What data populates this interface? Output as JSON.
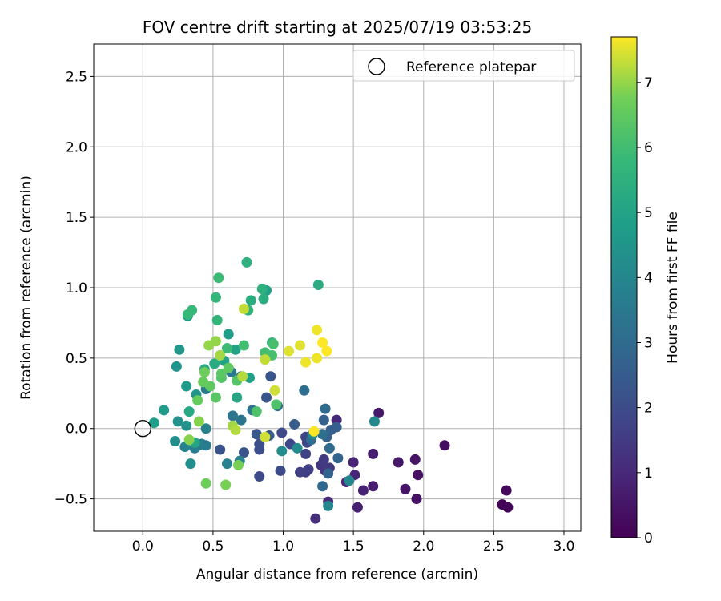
{
  "chart_data": {
    "type": "scatter",
    "title": "FOV centre drift starting at 2025/07/19 03:53:25",
    "xlabel": "Angular distance from reference (arcmin)",
    "ylabel": "Rotation from reference (arcmin)",
    "xlim": [
      -0.35,
      3.12
    ],
    "ylim": [
      -0.73,
      2.73
    ],
    "xticks": [
      0.0,
      0.5,
      1.0,
      1.5,
      2.0,
      2.5,
      3.0
    ],
    "xtick_labels": [
      "0.0",
      "0.5",
      "1.0",
      "1.5",
      "2.0",
      "2.5",
      "3.0"
    ],
    "yticks": [
      -0.5,
      0.0,
      0.5,
      1.0,
      1.5,
      2.0,
      2.5
    ],
    "ytick_labels": [
      "−0.5",
      "0.0",
      "0.5",
      "1.0",
      "1.5",
      "2.0",
      "2.5"
    ],
    "grid": true,
    "legend": {
      "position": "top-right",
      "entries": [
        "Reference platepar"
      ]
    },
    "reference_point": {
      "x": 0.0,
      "y": 0.0
    },
    "colorbar": {
      "label": "Hours from first FF file",
      "min": 0,
      "max": 7.7,
      "ticks": [
        0,
        1,
        2,
        3,
        4,
        5,
        6,
        7
      ],
      "tick_labels": [
        "0",
        "1",
        "2",
        "3",
        "4",
        "5",
        "6",
        "7"
      ],
      "colormap": "viridis"
    },
    "points": [
      {
        "x": 2.6,
        "y": -0.56,
        "h": 0.1
      },
      {
        "x": 2.56,
        "y": -0.54,
        "h": 0.1
      },
      {
        "x": 2.59,
        "y": -0.44,
        "h": 0.2
      },
      {
        "x": 2.15,
        "y": -0.12,
        "h": 0.3
      },
      {
        "x": 1.95,
        "y": -0.5,
        "h": 0.4
      },
      {
        "x": 1.96,
        "y": -0.33,
        "h": 0.4
      },
      {
        "x": 1.94,
        "y": -0.22,
        "h": 0.5
      },
      {
        "x": 1.87,
        "y": -0.43,
        "h": 0.5
      },
      {
        "x": 1.82,
        "y": -0.24,
        "h": 0.6
      },
      {
        "x": 1.68,
        "y": 0.11,
        "h": 0.6
      },
      {
        "x": 1.64,
        "y": -0.18,
        "h": 0.7
      },
      {
        "x": 1.64,
        "y": -0.41,
        "h": 0.7
      },
      {
        "x": 1.57,
        "y": -0.44,
        "h": 0.8
      },
      {
        "x": 1.53,
        "y": -0.56,
        "h": 0.8
      },
      {
        "x": 1.51,
        "y": -0.33,
        "h": 0.9
      },
      {
        "x": 1.5,
        "y": -0.24,
        "h": 0.9
      },
      {
        "x": 1.45,
        "y": -0.38,
        "h": 1.0
      },
      {
        "x": 1.38,
        "y": 0.06,
        "h": 1.0
      },
      {
        "x": 1.32,
        "y": -0.52,
        "h": 1.1
      },
      {
        "x": 1.23,
        "y": -0.64,
        "h": 1.2
      },
      {
        "x": 1.3,
        "y": -0.3,
        "h": 1.3
      },
      {
        "x": 1.27,
        "y": -0.26,
        "h": 1.4
      },
      {
        "x": 1.29,
        "y": -0.22,
        "h": 1.5
      },
      {
        "x": 1.33,
        "y": -0.28,
        "h": 1.5
      },
      {
        "x": 1.16,
        "y": -0.31,
        "h": 1.6
      },
      {
        "x": 1.18,
        "y": -0.29,
        "h": 1.6
      },
      {
        "x": 1.12,
        "y": -0.31,
        "h": 1.7
      },
      {
        "x": 1.16,
        "y": -0.18,
        "h": 1.7
      },
      {
        "x": 1.16,
        "y": -0.06,
        "h": 1.8
      },
      {
        "x": 1.17,
        "y": -0.1,
        "h": 1.8
      },
      {
        "x": 1.05,
        "y": -0.11,
        "h": 1.9
      },
      {
        "x": 0.99,
        "y": -0.03,
        "h": 1.9
      },
      {
        "x": 0.98,
        "y": -0.3,
        "h": 2.0
      },
      {
        "x": 0.83,
        "y": -0.34,
        "h": 2.0
      },
      {
        "x": 0.83,
        "y": -0.15,
        "h": 2.1
      },
      {
        "x": 0.83,
        "y": -0.11,
        "h": 2.1
      },
      {
        "x": 0.72,
        "y": -0.17,
        "h": 2.2
      },
      {
        "x": 0.55,
        "y": -0.15,
        "h": 2.2
      },
      {
        "x": 0.88,
        "y": 0.22,
        "h": 2.3
      },
      {
        "x": 0.91,
        "y": 0.37,
        "h": 2.3
      },
      {
        "x": 0.81,
        "y": -0.04,
        "h": 2.4
      },
      {
        "x": 0.9,
        "y": -0.05,
        "h": 2.4
      },
      {
        "x": 1.08,
        "y": 0.03,
        "h": 2.5
      },
      {
        "x": 1.38,
        "y": 0.01,
        "h": 2.6
      },
      {
        "x": 1.34,
        "y": -0.01,
        "h": 2.6
      },
      {
        "x": 1.29,
        "y": 0.06,
        "h": 2.7
      },
      {
        "x": 1.31,
        "y": -0.06,
        "h": 2.7
      },
      {
        "x": 1.39,
        "y": -0.21,
        "h": 2.8
      },
      {
        "x": 1.32,
        "y": -0.32,
        "h": 2.8
      },
      {
        "x": 1.28,
        "y": -0.41,
        "h": 2.9
      },
      {
        "x": 1.33,
        "y": -0.14,
        "h": 3.0
      },
      {
        "x": 1.3,
        "y": 0.14,
        "h": 3.0
      },
      {
        "x": 1.15,
        "y": 0.27,
        "h": 3.1
      },
      {
        "x": 1.2,
        "y": -0.08,
        "h": 3.1
      },
      {
        "x": 1.28,
        "y": -0.04,
        "h": 3.2
      },
      {
        "x": 0.96,
        "y": 0.16,
        "h": 3.2
      },
      {
        "x": 0.78,
        "y": 0.13,
        "h": 3.3
      },
      {
        "x": 0.7,
        "y": 0.06,
        "h": 3.3
      },
      {
        "x": 0.64,
        "y": 0.09,
        "h": 3.4
      },
      {
        "x": 0.7,
        "y": 0.37,
        "h": 3.4
      },
      {
        "x": 0.63,
        "y": 0.4,
        "h": 3.5
      },
      {
        "x": 0.45,
        "y": 0.28,
        "h": 3.5
      },
      {
        "x": 0.42,
        "y": -0.11,
        "h": 3.6
      },
      {
        "x": 0.45,
        "y": -0.12,
        "h": 3.6
      },
      {
        "x": 0.37,
        "y": -0.14,
        "h": 3.7
      },
      {
        "x": 0.4,
        "y": -0.12,
        "h": 3.7
      },
      {
        "x": 0.6,
        "y": -0.25,
        "h": 3.8
      },
      {
        "x": 0.69,
        "y": -0.23,
        "h": 3.8
      },
      {
        "x": 0.3,
        "y": -0.13,
        "h": 3.9
      },
      {
        "x": 0.45,
        "y": 0.0,
        "h": 3.9
      },
      {
        "x": 1.32,
        "y": -0.55,
        "h": 4.0
      },
      {
        "x": 1.47,
        "y": -0.37,
        "h": 4.0
      },
      {
        "x": 1.65,
        "y": 0.05,
        "h": 4.1
      },
      {
        "x": 1.21,
        "y": -0.04,
        "h": 4.1
      },
      {
        "x": 1.1,
        "y": -0.14,
        "h": 4.2
      },
      {
        "x": 0.99,
        "y": -0.16,
        "h": 4.2
      },
      {
        "x": 0.34,
        "y": -0.25,
        "h": 4.3
      },
      {
        "x": 0.23,
        "y": -0.09,
        "h": 4.3
      },
      {
        "x": 0.25,
        "y": 0.05,
        "h": 4.4
      },
      {
        "x": 0.31,
        "y": 0.02,
        "h": 4.4
      },
      {
        "x": 0.38,
        "y": 0.24,
        "h": 4.5
      },
      {
        "x": 0.24,
        "y": 0.44,
        "h": 4.5
      },
      {
        "x": 0.26,
        "y": 0.56,
        "h": 4.6
      },
      {
        "x": 0.32,
        "y": 0.8,
        "h": 4.6
      },
      {
        "x": 0.31,
        "y": 0.3,
        "h": 4.7
      },
      {
        "x": 0.15,
        "y": 0.13,
        "h": 4.7
      },
      {
        "x": 0.08,
        "y": 0.04,
        "h": 4.8
      },
      {
        "x": 0.61,
        "y": 0.67,
        "h": 4.8
      },
      {
        "x": 0.88,
        "y": 0.98,
        "h": 4.9
      },
      {
        "x": 0.76,
        "y": 0.36,
        "h": 4.9
      },
      {
        "x": 0.58,
        "y": 0.48,
        "h": 5.0
      },
      {
        "x": 0.66,
        "y": 0.56,
        "h": 5.0
      },
      {
        "x": 0.67,
        "y": 0.22,
        "h": 5.1
      },
      {
        "x": 0.37,
        "y": -0.1,
        "h": 5.1
      },
      {
        "x": 0.44,
        "y": 0.42,
        "h": 5.2
      },
      {
        "x": 0.33,
        "y": 0.12,
        "h": 5.2
      },
      {
        "x": 0.51,
        "y": 0.46,
        "h": 5.3
      },
      {
        "x": 1.25,
        "y": 1.02,
        "h": 5.3
      },
      {
        "x": 0.86,
        "y": 0.92,
        "h": 5.4
      },
      {
        "x": 0.77,
        "y": 0.91,
        "h": 5.4
      },
      {
        "x": 0.74,
        "y": 1.18,
        "h": 5.5
      },
      {
        "x": 0.85,
        "y": 0.99,
        "h": 5.5
      },
      {
        "x": 0.92,
        "y": 0.61,
        "h": 5.6
      },
      {
        "x": 0.75,
        "y": 0.84,
        "h": 5.6
      },
      {
        "x": 0.52,
        "y": 0.93,
        "h": 5.7
      },
      {
        "x": 0.53,
        "y": 0.77,
        "h": 5.7
      },
      {
        "x": 0.35,
        "y": 0.84,
        "h": 5.8
      },
      {
        "x": 0.32,
        "y": 0.81,
        "h": 5.8
      },
      {
        "x": 0.54,
        "y": 1.07,
        "h": 5.9
      },
      {
        "x": 0.6,
        "y": 0.57,
        "h": 5.9
      },
      {
        "x": 0.72,
        "y": 0.59,
        "h": 6.0
      },
      {
        "x": 0.87,
        "y": 0.54,
        "h": 6.0
      },
      {
        "x": 0.92,
        "y": 0.52,
        "h": 6.1
      },
      {
        "x": 0.93,
        "y": 0.6,
        "h": 6.1
      },
      {
        "x": 0.95,
        "y": 0.17,
        "h": 6.2
      },
      {
        "x": 0.81,
        "y": 0.12,
        "h": 6.2
      },
      {
        "x": 0.67,
        "y": 0.34,
        "h": 6.3
      },
      {
        "x": 0.56,
        "y": 0.36,
        "h": 6.3
      },
      {
        "x": 0.52,
        "y": 0.22,
        "h": 6.4
      },
      {
        "x": 0.56,
        "y": 0.39,
        "h": 6.4
      },
      {
        "x": 0.61,
        "y": 0.43,
        "h": 6.5
      },
      {
        "x": 0.48,
        "y": 0.3,
        "h": 6.5
      },
      {
        "x": 0.43,
        "y": 0.33,
        "h": 6.6
      },
      {
        "x": 0.39,
        "y": 0.2,
        "h": 6.6
      },
      {
        "x": 0.44,
        "y": 0.4,
        "h": 6.7
      },
      {
        "x": 0.45,
        "y": -0.39,
        "h": 6.7
      },
      {
        "x": 0.59,
        "y": -0.4,
        "h": 6.8
      },
      {
        "x": 0.68,
        "y": -0.26,
        "h": 6.8
      },
      {
        "x": 0.4,
        "y": 0.05,
        "h": 6.9
      },
      {
        "x": 0.33,
        "y": -0.08,
        "h": 6.9
      },
      {
        "x": 0.47,
        "y": 0.59,
        "h": 7.0
      },
      {
        "x": 0.52,
        "y": 0.62,
        "h": 7.0
      },
      {
        "x": 0.55,
        "y": 0.52,
        "h": 7.1
      },
      {
        "x": 0.64,
        "y": 0.02,
        "h": 7.1
      },
      {
        "x": 0.66,
        "y": -0.01,
        "h": 7.2
      },
      {
        "x": 0.71,
        "y": 0.37,
        "h": 7.2
      },
      {
        "x": 0.72,
        "y": 0.85,
        "h": 7.3
      },
      {
        "x": 0.87,
        "y": 0.49,
        "h": 7.3
      },
      {
        "x": 0.94,
        "y": 0.27,
        "h": 7.4
      },
      {
        "x": 0.87,
        "y": -0.06,
        "h": 7.4
      },
      {
        "x": 1.04,
        "y": 0.55,
        "h": 7.5
      },
      {
        "x": 1.12,
        "y": 0.59,
        "h": 7.5
      },
      {
        "x": 1.16,
        "y": 0.47,
        "h": 7.6
      },
      {
        "x": 1.24,
        "y": 0.5,
        "h": 7.6
      },
      {
        "x": 1.24,
        "y": 0.7,
        "h": 7.6
      },
      {
        "x": 1.28,
        "y": 0.61,
        "h": 7.7
      },
      {
        "x": 1.31,
        "y": 0.55,
        "h": 7.7
      },
      {
        "x": 1.22,
        "y": -0.02,
        "h": 7.7
      }
    ]
  }
}
